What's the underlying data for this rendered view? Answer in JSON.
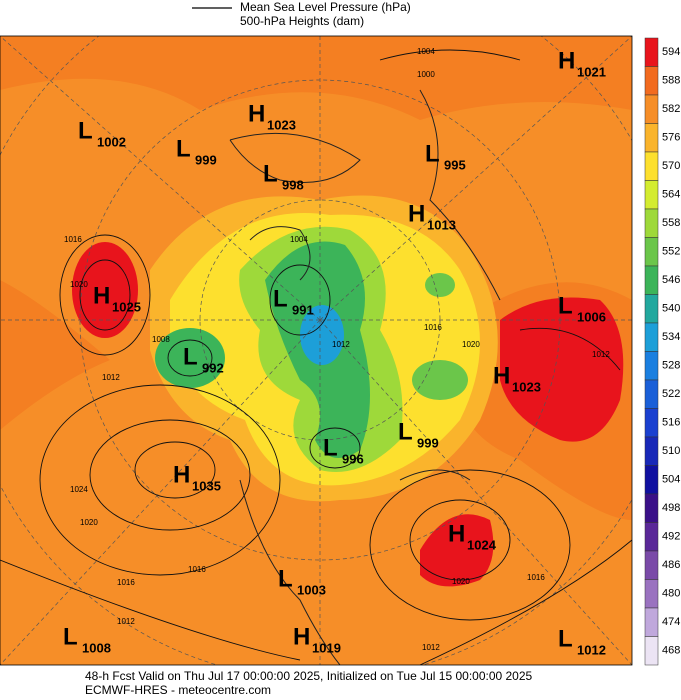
{
  "legend": {
    "mslp": "Mean Sea Level Pressure (hPa)",
    "heights": "500-hPa Heights (dam)"
  },
  "colorbar": [
    {
      "value": 594,
      "color": "#e8141c"
    },
    {
      "value": 588,
      "color": "#f26b1f"
    },
    {
      "value": 582,
      "color": "#f68e28"
    },
    {
      "value": 576,
      "color": "#fab42c"
    },
    {
      "value": 570,
      "color": "#fde02e"
    },
    {
      "value": 564,
      "color": "#d4ec30"
    },
    {
      "value": 558,
      "color": "#9ed93a"
    },
    {
      "value": 552,
      "color": "#6bc64a"
    },
    {
      "value": 546,
      "color": "#3cb459"
    },
    {
      "value": 540,
      "color": "#22a89e"
    },
    {
      "value": 534,
      "color": "#1d9fd8"
    },
    {
      "value": 528,
      "color": "#1a7fe0"
    },
    {
      "value": 522,
      "color": "#1a5fd8"
    },
    {
      "value": 516,
      "color": "#1a40d0"
    },
    {
      "value": 510,
      "color": "#1828b8"
    },
    {
      "value": 504,
      "color": "#1010a0"
    },
    {
      "value": 498,
      "color": "#3a1088"
    },
    {
      "value": 492,
      "color": "#5a2898"
    },
    {
      "value": 486,
      "color": "#7a4aa8"
    },
    {
      "value": 480,
      "color": "#9a72c0"
    },
    {
      "value": 474,
      "color": "#c0a8dc"
    },
    {
      "value": 468,
      "color": "#ece4f4"
    }
  ],
  "centers": [
    {
      "type": "H",
      "value": 1021
    },
    {
      "type": "L",
      "value": 1002
    },
    {
      "type": "L",
      "value": 999
    },
    {
      "type": "H",
      "value": 1023
    },
    {
      "type": "L",
      "value": 998
    },
    {
      "type": "L",
      "value": 995
    },
    {
      "type": "H",
      "value": 1013
    },
    {
      "type": "H",
      "value": 1025
    },
    {
      "type": "L",
      "value": 991
    },
    {
      "type": "L",
      "value": 1006
    },
    {
      "type": "L",
      "value": 992
    },
    {
      "type": "H",
      "value": 1023
    },
    {
      "type": "L",
      "value": 999
    },
    {
      "type": "L",
      "value": 996
    },
    {
      "type": "H",
      "value": 1035
    },
    {
      "type": "H",
      "value": 1024
    },
    {
      "type": "L",
      "value": 1003
    },
    {
      "type": "L",
      "value": 1008
    },
    {
      "type": "H",
      "value": 1019
    },
    {
      "type": "L",
      "value": 1012
    }
  ],
  "isobar_labels": [
    1004,
    1000,
    1016,
    1020,
    1008,
    1012,
    1024,
    1020,
    1016,
    1016,
    1012,
    1004,
    1012,
    1016,
    1020,
    1012,
    1020,
    1016,
    1012
  ],
  "footer": [
    "48-h Fcst Valid on Thu Jul 17 00:00:00 2025, Initialized on Tue Jul 15 00:00:00 2025",
    "ECMWF-HRES  - meteocentre.com"
  ]
}
